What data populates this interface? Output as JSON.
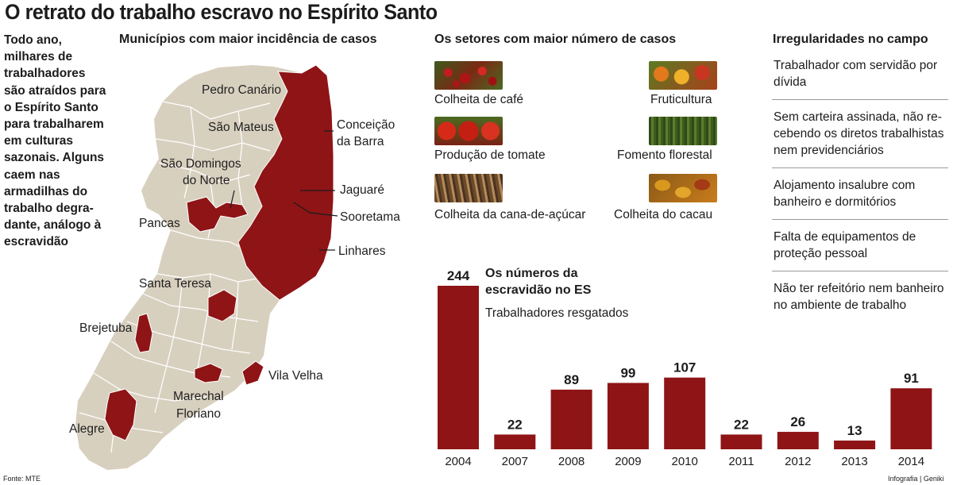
{
  "title": "O retrato do trabalho escravo no Espírito Santo",
  "intro": [
    "Todo ano,",
    "milhares de",
    "trabalhadores",
    "são atraídos para",
    "o Espírito Santo",
    "para trabalharem",
    "em culturas",
    "sazonais. Alguns",
    "caem nas",
    "armadilhas do",
    "trabalho degra-",
    "dante, análogo à",
    "escravidão"
  ],
  "map": {
    "title": "Municípios com maior incidência de casos",
    "colors": {
      "land": "#d8d0bf",
      "highlight": "#8e1416",
      "border": "#ffffff"
    },
    "labels": {
      "pedro_canario": "Pedro Canário",
      "sao_mateus": "São Mateus",
      "conceicao_1": "Conceição",
      "conceicao_2": "da Barra",
      "sao_domingos_1": "São Domingos",
      "sao_domingos_2": "do Norte",
      "jaguare": "Jaguaré",
      "pancas": "Pancas",
      "sooretama": "Sooretama",
      "linhares": "Linhares",
      "santa_teresa": "Santa Teresa",
      "brejetuba": "Brejetuba",
      "vila_velha": "Vila Velha",
      "marechal_1": "Marechal",
      "marechal_2": "Floriano",
      "alegre": "Alegre"
    }
  },
  "sectors": {
    "title": "Os setores com maior número de casos",
    "items": [
      {
        "label": "Colheita de café",
        "icon": "coffee-photo"
      },
      {
        "label": "Fruticultura",
        "icon": "fruit-photo"
      },
      {
        "label": "Produção de tomate",
        "icon": "tomato-photo"
      },
      {
        "label": "Fomento florestal",
        "icon": "forest-photo"
      },
      {
        "label": "Colheita da cana-de-açúcar",
        "icon": "sugarcane-photo"
      },
      {
        "label": "Colheita do cacau",
        "icon": "cacao-photo"
      }
    ]
  },
  "irregularities": {
    "title": "Irregularidades no campo",
    "items": [
      "Trabalhador com servidão por dívida",
      "Sem carteira assinada, não re-cebendo os diretos trabalhistas nem previdenciários",
      "Alojamento insalubre com banheiro e dormitórios",
      "Falta de equipamentos de proteção pessoal",
      "Não ter refeitório nem banheiro no ambiente de trabalho"
    ]
  },
  "chart_data": {
    "type": "bar",
    "title": "Os números da escravidão no ES",
    "subtitle": "Trabalhadores resgatados",
    "categories": [
      "2004",
      "2007",
      "2008",
      "2009",
      "2010",
      "2011",
      "2012",
      "2013",
      "2014"
    ],
    "values": [
      244,
      22,
      89,
      99,
      107,
      22,
      26,
      13,
      91
    ],
    "ylim": [
      0,
      244
    ],
    "grid": false,
    "color": "#8e1416"
  },
  "source": "Fonte: MTE",
  "credit": "Infografia | Geniki"
}
